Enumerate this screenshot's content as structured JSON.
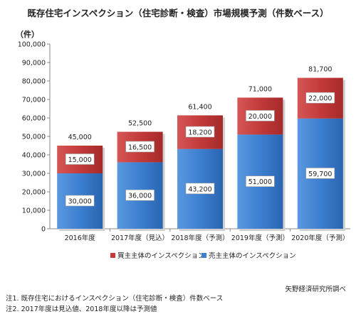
{
  "title": "既存住宅インスペクション（住宅診断・検査）市場規模予測（件数ベース）",
  "unit": "（件）",
  "source": "矢野経済研究所調べ",
  "notes": [
    "注1. 既存住宅におけるインスペクション（住宅診断・検査）件数ベース",
    "注2. 2017年度は見込値、2018年度以降は予測値"
  ],
  "colors": {
    "seller": "#3c7fd0",
    "buyer": "#c43a3a"
  },
  "chart_data": {
    "type": "bar",
    "stacked": true,
    "categories": [
      "2016年度",
      "2017年度（見込）",
      "2018年度（予測）",
      "2019年度（予測）",
      "2020年度（予測）"
    ],
    "series": [
      {
        "name": "売主主体のインスペクション",
        "values": [
          30000,
          36000,
          43200,
          51000,
          59700
        ]
      },
      {
        "name": "買主主体のインスペクション",
        "values": [
          15000,
          16500,
          18200,
          20000,
          22000
        ]
      }
    ],
    "totals": [
      45000,
      52500,
      61400,
      71000,
      81700
    ],
    "ylim": [
      0,
      100000
    ],
    "yticks": [
      "0",
      "10,000",
      "20,000",
      "30,000",
      "40,000",
      "50,000",
      "60,000",
      "70,000",
      "80,000",
      "90,000",
      "100,000"
    ],
    "value_labels": {
      "seller": [
        "30,000",
        "36,000",
        "43,200",
        "51,000",
        "59,700"
      ],
      "buyer": [
        "15,000",
        "16,500",
        "18,200",
        "20,000",
        "22,000"
      ],
      "totals": [
        "45,000",
        "52,500",
        "61,400",
        "71,000",
        "81,700"
      ]
    },
    "legend": "bottom",
    "grid": false
  }
}
